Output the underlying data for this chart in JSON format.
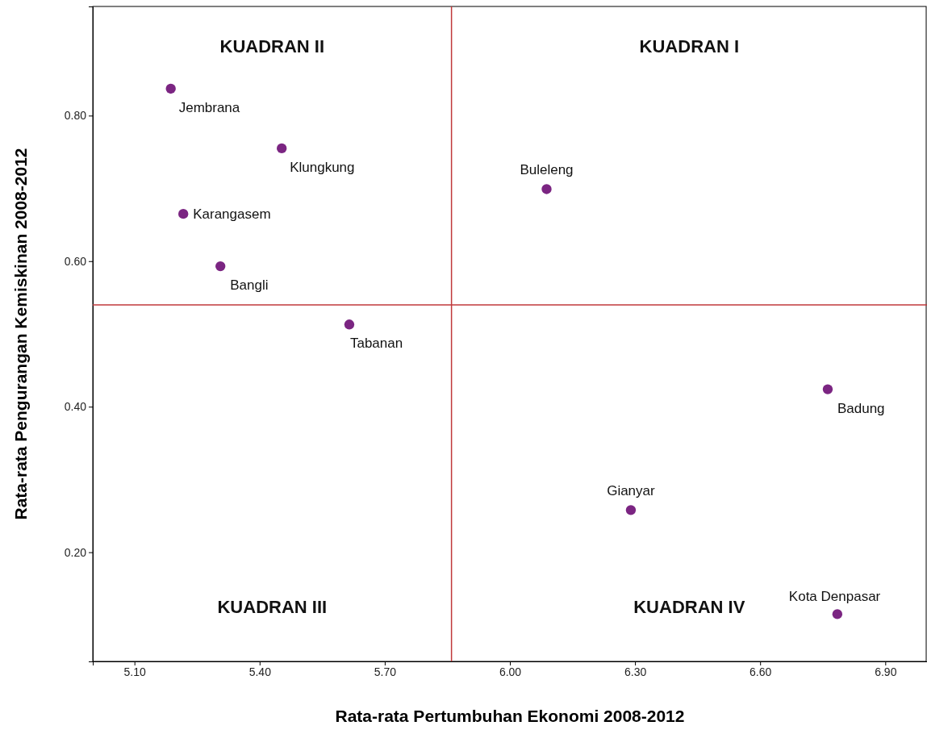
{
  "chart_data": {
    "type": "scatter",
    "xlabel": "Rata-rata Pertumbuhan Ekonomi 2008-2012",
    "ylabel": "Rata-rata Pengurangan Kemiskinan 2008-2012",
    "x": [
      5.187,
      5.453,
      5.217,
      5.306,
      5.615,
      6.088,
      6.762,
      6.29,
      6.785
    ],
    "series": [
      {
        "color": "#7b2582",
        "values": [
          0.837,
          0.755,
          0.665,
          0.593,
          0.513,
          0.699,
          0.424,
          0.258,
          0.115
        ]
      }
    ],
    "xlim": [
      5.0,
      7.0
    ],
    "xticks": [
      {
        "value": 5.1,
        "label": "5.10"
      },
      {
        "value": 5.4,
        "label": "5.40"
      },
      {
        "value": 5.7,
        "label": "5.70"
      },
      {
        "value": 6.0,
        "label": "6.00"
      },
      {
        "value": 6.3,
        "label": "6.30"
      },
      {
        "value": 6.6,
        "label": "6.60"
      },
      {
        "value": 6.9,
        "label": "6.90"
      }
    ],
    "ylim": [
      0.05,
      0.95
    ],
    "yticks": [
      {
        "value": 0.2,
        "label": "0.20"
      },
      {
        "value": 0.4,
        "label": "0.40"
      },
      {
        "value": 0.6,
        "label": "0.60"
      },
      {
        "value": 0.8,
        "label": "0.80"
      }
    ],
    "ref_lines": [
      {
        "axis": "x",
        "value": 5.86,
        "color": "#c0393b"
      },
      {
        "axis": "y",
        "value": 0.54,
        "color": "#c0393b"
      }
    ],
    "marker": "circle",
    "grid": false,
    "annotations": [
      "KUADRAN II",
      "KUADRAN I",
      "KUADRAN III",
      "KUADRAN IV",
      {
        "text": "Jembrana",
        "x": 5.187,
        "y": 0.837
      },
      {
        "text": "Klungkung",
        "x": 5.453,
        "y": 0.755
      },
      {
        "text": "Karangasem",
        "x": 5.217,
        "y": 0.665
      },
      {
        "text": "Bangli",
        "x": 5.306,
        "y": 0.593
      },
      {
        "text": "Tabanan",
        "x": 5.615,
        "y": 0.513
      },
      {
        "text": "Buleleng",
        "x": 6.088,
        "y": 0.699
      },
      {
        "text": "Badung",
        "x": 6.762,
        "y": 0.424
      },
      {
        "text": "Gianyar",
        "x": 6.29,
        "y": 0.258
      },
      {
        "text": "Kota Denpasar",
        "x": 6.785,
        "y": 0.115
      }
    ]
  }
}
